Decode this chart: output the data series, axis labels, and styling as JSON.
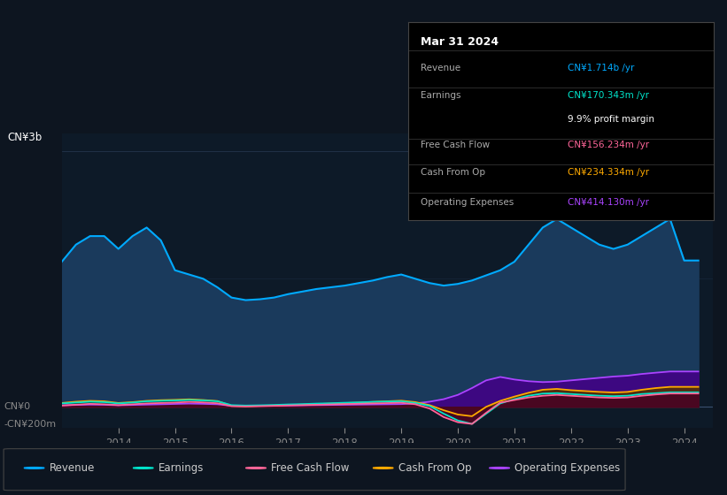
{
  "bg": "#0d1520",
  "plot_bg": "#0d1a28",
  "revenue_color": "#00aaff",
  "earnings_color": "#00e5cc",
  "fcf_color": "#ff6699",
  "cashop_color": "#ffaa00",
  "opex_color": "#aa44ff",
  "revenue_fill": "#1a3a5c",
  "earnings_fill": "#003322",
  "fcf_fill": "#550022",
  "cashop_fill": "#553300",
  "opex_fill": "#440088",
  "ylabel_top": "CN¥3b",
  "tooltip": {
    "date": "Mar 31 2024",
    "revenue_label": "Revenue",
    "revenue_val": "CN¥1.714b /yr",
    "earnings_label": "Earnings",
    "earnings_val": "CN¥170.343m /yr",
    "margin_val": "9.9% profit margin",
    "fcf_label": "Free Cash Flow",
    "fcf_val": "CN¥156.234m /yr",
    "cashop_label": "Cash From Op",
    "cashop_val": "CN¥234.334m /yr",
    "opex_label": "Operating Expenses",
    "opex_val": "CN¥414.130m /yr"
  },
  "legend": [
    {
      "label": "Revenue",
      "color": "#00aaff"
    },
    {
      "label": "Earnings",
      "color": "#00e5cc"
    },
    {
      "label": "Free Cash Flow",
      "color": "#ff6699"
    },
    {
      "label": "Cash From Op",
      "color": "#ffaa00"
    },
    {
      "label": "Operating Expenses",
      "color": "#aa44ff"
    }
  ],
  "x_min": 2013.0,
  "x_max": 2024.5,
  "y_min": -250000000,
  "y_max": 3200000000,
  "x_ticks": [
    2014,
    2015,
    2016,
    2017,
    2018,
    2019,
    2020,
    2021,
    2022,
    2023,
    2024
  ]
}
